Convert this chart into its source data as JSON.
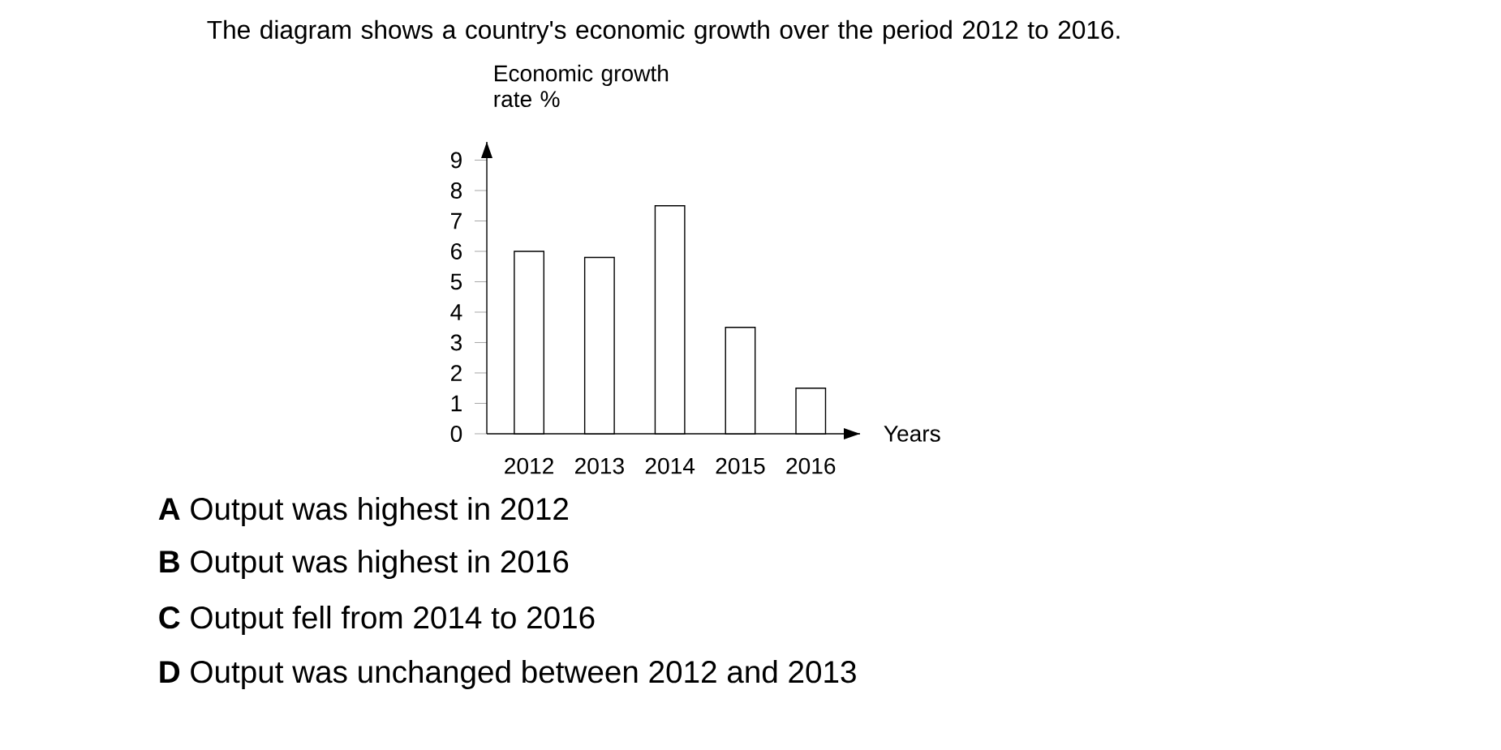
{
  "chart_data": {
    "type": "bar",
    "title": "The diagram shows a country's economic growth over the period 2012 to 2016.",
    "ylabel": "Economic growth rate %",
    "xlabel": "Years",
    "categories": [
      "2012",
      "2013",
      "2014",
      "2015",
      "2016"
    ],
    "values": [
      6,
      5.8,
      7.5,
      3.5,
      1.5
    ],
    "color": "#ffffff",
    "ylim": [
      0,
      9.6
    ],
    "yticks": [
      0,
      1,
      2,
      3,
      4,
      5,
      6,
      7,
      8,
      9
    ],
    "grid": false,
    "annotations": [
      "**A** Output was highest in 2012",
      "**B** Output was highest in 2016",
      "**C** Output fell from 2014 to 2016",
      "**D** Output was unchanged between 2012 and 2013"
    ]
  }
}
